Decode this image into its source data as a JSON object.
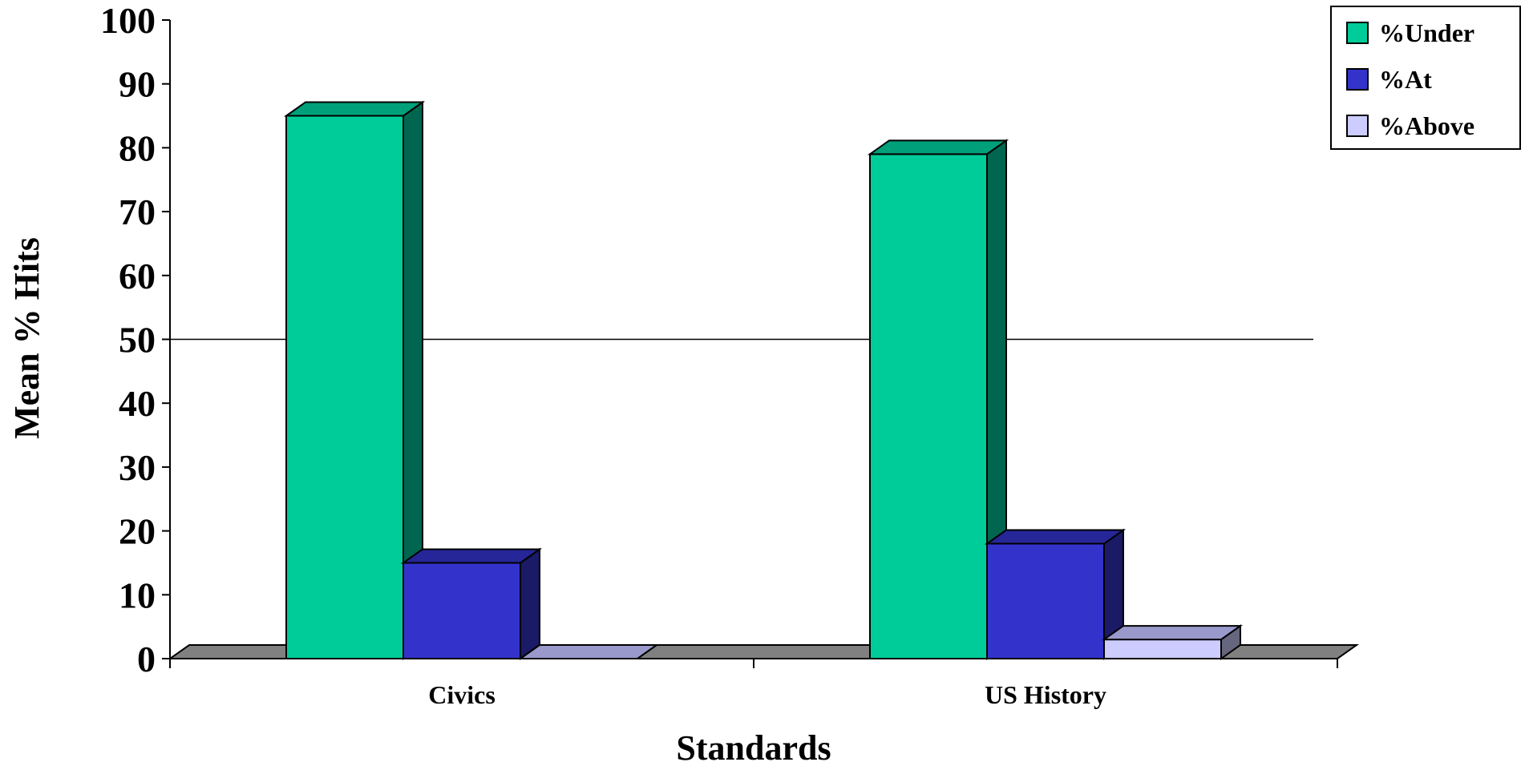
{
  "chart_data": {
    "type": "bar",
    "style": "3d-clustered-column",
    "categories": [
      "Civics",
      "US History"
    ],
    "series": [
      {
        "name": "%Under",
        "values": [
          85,
          79
        ],
        "color": "#00CC99",
        "side": "#006650",
        "top": "#00A07A"
      },
      {
        "name": "%At",
        "values": [
          15,
          18
        ],
        "color": "#3333CC",
        "side": "#1A1A66",
        "top": "#262699"
      },
      {
        "name": "%Above",
        "values": [
          0,
          3
        ],
        "color": "#CCCCFF",
        "side": "#66667F",
        "top": "#9999CC"
      }
    ],
    "xlabel": "Standards",
    "ylabel": "Mean % Hits",
    "ylim": [
      0,
      100
    ],
    "yticks": [
      0,
      10,
      20,
      30,
      40,
      50,
      60,
      70,
      80,
      90,
      100
    ],
    "reference_line": 50,
    "legend_position": "top-right",
    "floor_color": "#808080"
  }
}
